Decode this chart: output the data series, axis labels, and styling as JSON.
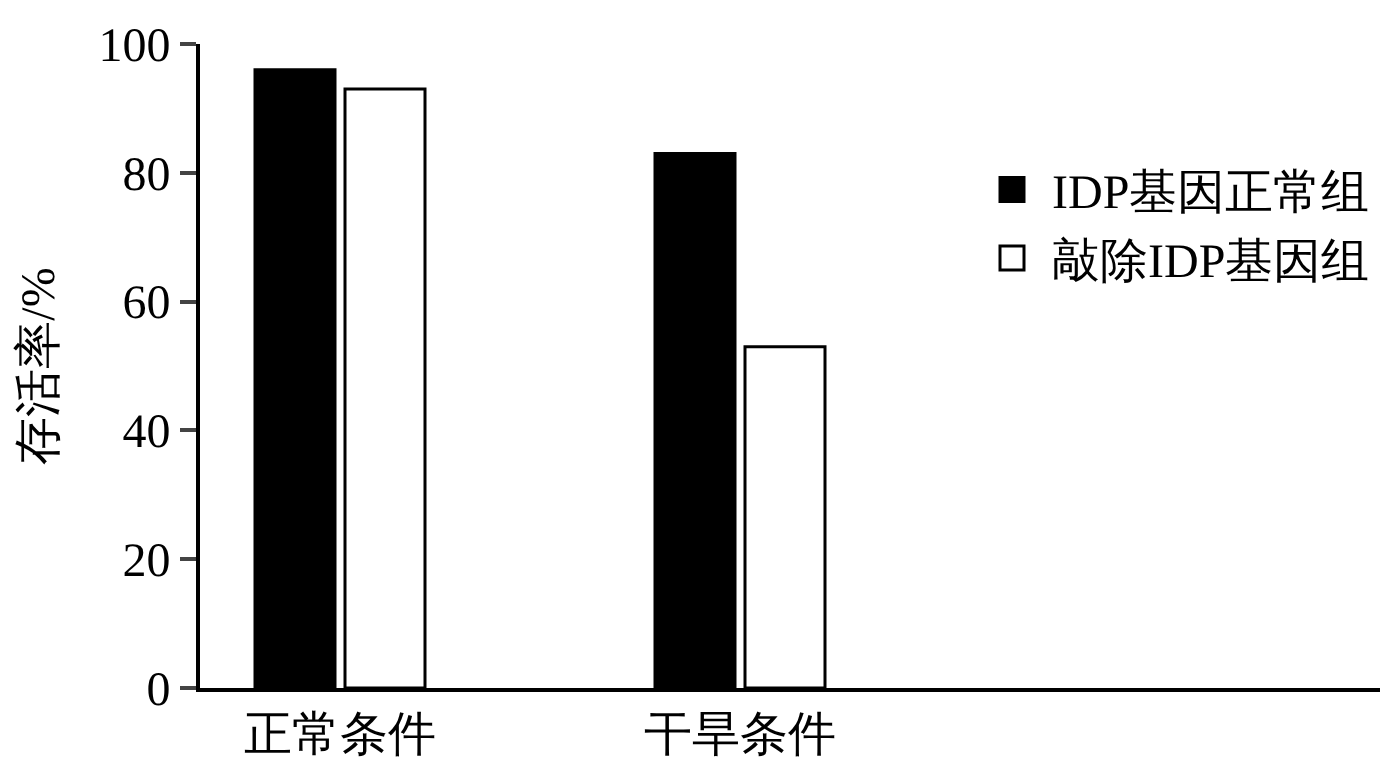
{
  "chart_data": {
    "type": "bar",
    "ylabel": "存活率/%",
    "categories": [
      "正常条件",
      "干旱条件"
    ],
    "series": [
      {
        "name": "IDP基因正常组",
        "color": "#000000",
        "values": [
          96,
          83
        ]
      },
      {
        "name": "敲除IDP基因组",
        "color": "#ffffff",
        "values": [
          93,
          53
        ]
      }
    ],
    "ylim": [
      0,
      100
    ],
    "yticks": [
      0,
      20,
      40,
      60,
      80,
      100
    ],
    "legend": "right"
  }
}
